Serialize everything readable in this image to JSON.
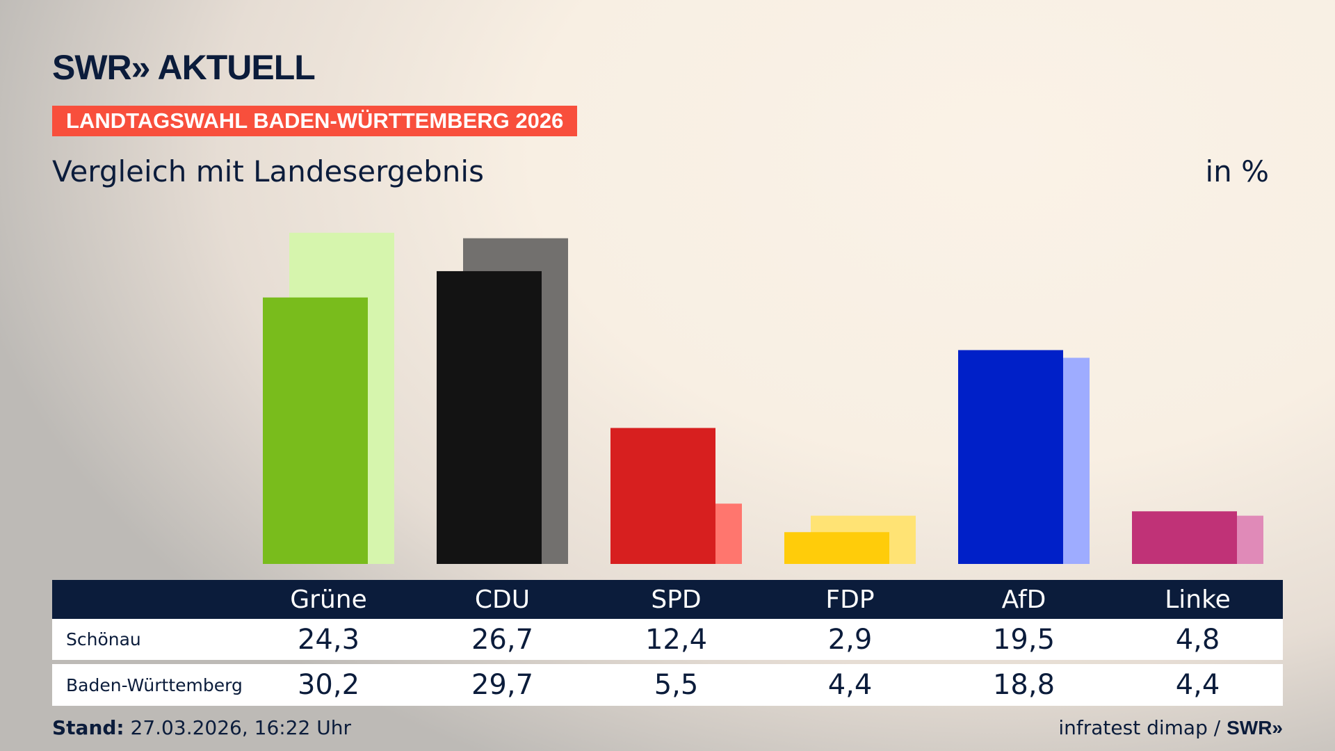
{
  "header": {
    "logo": "SWR» AKTUELL",
    "banner": "LANDTAGSWAHL BADEN-WÜRTTEMBERG 2026",
    "subtitle": "Vergleich mit Landesergebnis",
    "unit": "in %"
  },
  "chart_data": {
    "type": "bar",
    "title": "Vergleich mit Landesergebnis",
    "ylabel": "in %",
    "categories": [
      "Grüne",
      "CDU",
      "SPD",
      "FDP",
      "AfD",
      "Linke"
    ],
    "series": [
      {
        "name": "Schönau",
        "values": [
          24.3,
          26.7,
          12.4,
          2.9,
          19.5,
          4.8
        ],
        "display": [
          "24,3",
          "26,7",
          "12,4",
          "2,9",
          "19,5",
          "4,8"
        ],
        "colors": [
          "#79bc1c",
          "#131313",
          "#d71f1f",
          "#ffcc0a",
          "#0020c8",
          "#c03277"
        ]
      },
      {
        "name": "Baden-Württemberg",
        "values": [
          30.2,
          29.7,
          5.5,
          4.4,
          18.8,
          4.4
        ],
        "display": [
          "30,2",
          "29,7",
          "5,5",
          "4,4",
          "18,8",
          "4,4"
        ],
        "colors": [
          "#d6f5ad",
          "#72706e",
          "#ff766e",
          "#ffe374",
          "#9eacff",
          "#e08ab8"
        ]
      }
    ],
    "ylim": [
      0,
      30.2
    ],
    "grid": false,
    "legend": "table-below"
  },
  "footer": {
    "stand_label": "Stand:",
    "stand_value": "27.03.2026, 16:22 Uhr",
    "source": "infratest dimap /",
    "source_logo": "SWR»"
  },
  "colors": {
    "navy": "#0b1c3b",
    "banner": "#f84f3c"
  }
}
